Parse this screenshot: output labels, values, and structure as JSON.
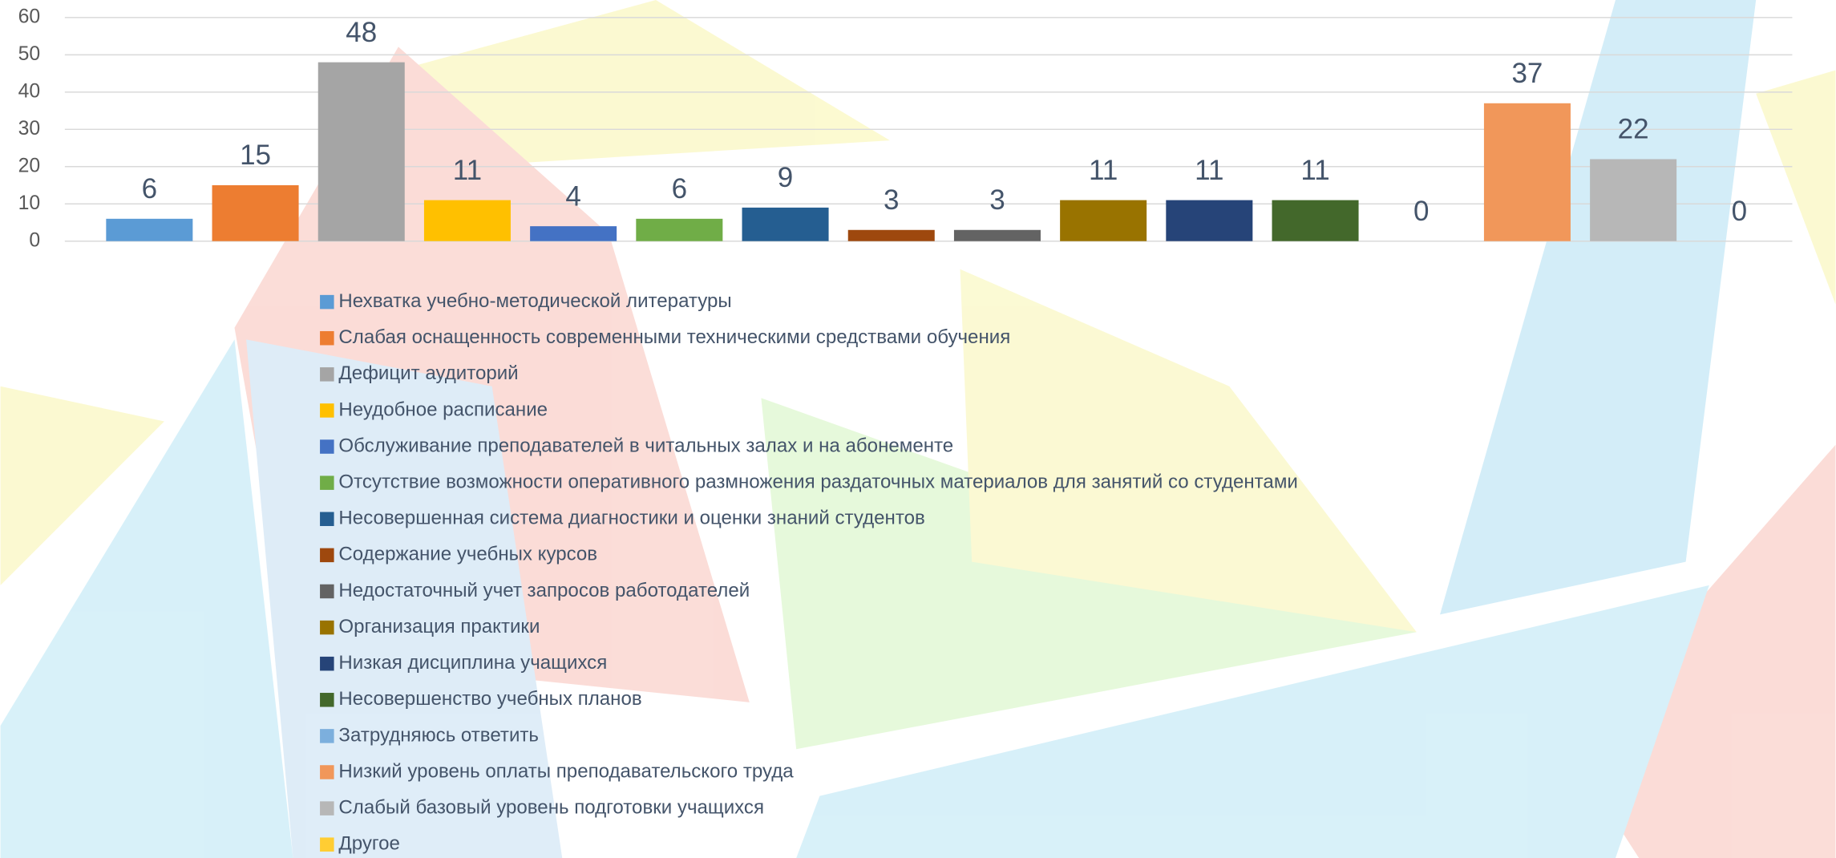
{
  "chart_data": {
    "type": "bar",
    "categories": [
      null
    ],
    "ylim": [
      0,
      60
    ],
    "yticks": [
      0,
      10,
      20,
      30,
      40,
      50,
      60
    ],
    "grid": true,
    "series": [
      {
        "name": "Нехватка учебно-методической литературы",
        "color": "#5b9bd5",
        "values": [
          6
        ]
      },
      {
        "name": "Слабая оснащенность современными техническими средствами обучения",
        "color": "#ed7d31",
        "values": [
          15
        ]
      },
      {
        "name": "Дефицит аудиторий",
        "color": "#a5a5a5",
        "values": [
          48
        ]
      },
      {
        "name": "Неудобное расписание",
        "color": "#ffc000",
        "values": [
          11
        ]
      },
      {
        "name": "Обслуживание преподавателей в читальных залах и на абонементе",
        "color": "#4472c4",
        "values": [
          4
        ]
      },
      {
        "name": "Отсутствие возможности оперативного размножения раздаточных материалов для занятий со студентами",
        "color": "#70ad47",
        "values": [
          6
        ]
      },
      {
        "name": "Несовершенная система диагностики и оценки знаний студентов",
        "color": "#255e91",
        "values": [
          9
        ]
      },
      {
        "name": "Содержание учебных курсов",
        "color": "#9e480e",
        "values": [
          3
        ]
      },
      {
        "name": "Недостаточный учет запросов работодателей",
        "color": "#636363",
        "values": [
          3
        ]
      },
      {
        "name": "Организация практики",
        "color": "#997300",
        "values": [
          11
        ]
      },
      {
        "name": "Низкая дисциплина учащихся",
        "color": "#264478",
        "values": [
          11
        ]
      },
      {
        "name": "Несовершенство учебных планов",
        "color": "#43682b",
        "values": [
          11
        ]
      },
      {
        "name": "Затрудняюсь ответить",
        "color": "#7cafdd",
        "values": [
          0
        ]
      },
      {
        "name": "Низкий уровень оплаты преподавательского труда",
        "color": "#f1975a",
        "values": [
          37
        ]
      },
      {
        "name": "Слабый базовый уровень подготовки учащихся",
        "color": "#b7b7b7",
        "values": [
          22
        ]
      },
      {
        "name": "Другое",
        "color": "#ffcd33",
        "values": [
          0
        ]
      }
    ]
  }
}
